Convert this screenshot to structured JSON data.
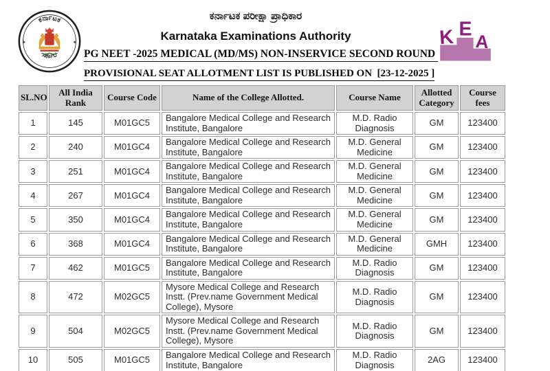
{
  "header": {
    "org_name_kannada": "ಕರ್ನಾಟಕ ಪರೀಕ್ಷಾ ಪ್ರಾಧಿಕಾರ",
    "org_name_english": "Karnataka Examinations Authority",
    "round_title": "PG NEET -2025 MEDICAL (MD/MS) NON-INSERVICE SECOND ROUND ",
    "publish_line": "PROVISIONAL SEAT ALLOTMENT LIST IS PUBLISHED ON  [23-12-2025 ]",
    "emblem": {
      "icon": "karnataka-government-emblem",
      "top_text": "ಕರ್ನಾಟಕ",
      "bottom_text": "ಸರ್ಕಾರ"
    },
    "kea_logo": {
      "icon": "kea-podium-logo",
      "letters": [
        "K",
        "E",
        "A"
      ],
      "letter_color": "#8e1d80",
      "podium_color": "#b677ae"
    }
  },
  "table": {
    "columns": [
      "SL.NO",
      "All India Rank",
      "Course Code",
      "Name of the College Allotted.",
      "Course Name",
      "Allotted Category",
      "Course fees"
    ],
    "header_bg": "#d2d2d2",
    "border_color": "#9a9a9a",
    "rows": [
      [
        "1",
        "145",
        "M01GC5",
        "Bangalore Medical College and Research Institute, Bangalore",
        "M.D. Radio Diagnosis",
        "GM",
        "123400"
      ],
      [
        "2",
        "240",
        "M01GC4",
        "Bangalore Medical College and Research Institute, Bangalore",
        "M.D. General Medicine",
        "GM",
        "123400"
      ],
      [
        "3",
        "251",
        "M01GC4",
        "Bangalore Medical College and Research Institute, Bangalore",
        "M.D. General Medicine",
        "GM",
        "123400"
      ],
      [
        "4",
        "267",
        "M01GC4",
        "Bangalore Medical College and Research Institute, Bangalore",
        "M.D. General Medicine",
        "GM",
        "123400"
      ],
      [
        "5",
        "350",
        "M01GC4",
        "Bangalore Medical College and Research Institute, Bangalore",
        "M.D. General Medicine",
        "GM",
        "123400"
      ],
      [
        "6",
        "368",
        "M01GC4",
        "Bangalore Medical College and Research Institute, Bangalore",
        "M.D. General Medicine",
        "GMH",
        "123400"
      ],
      [
        "7",
        "462",
        "M01GC5",
        "Bangalore Medical College and Research Institute, Bangalore",
        "M.D. Radio Diagnosis",
        "GM",
        "123400"
      ],
      [
        "8",
        "472",
        "M02GC5",
        "Mysore Medical College and Research Instt. (Prev.name Government Medical College), Mysore",
        "M.D. Radio Diagnosis",
        "GM",
        "123400"
      ],
      [
        "9",
        "504",
        "M02GC5",
        "Mysore Medical College and Research Instt. (Prev.name Government Medical College), Mysore",
        "M.D. Radio Diagnosis",
        "GM",
        "123400"
      ],
      [
        "10",
        "505",
        "M01GC5",
        "Bangalore Medical College and Research Institute, Bangalore",
        "M.D. Radio Diagnosis",
        "2AG",
        "123400"
      ]
    ]
  }
}
